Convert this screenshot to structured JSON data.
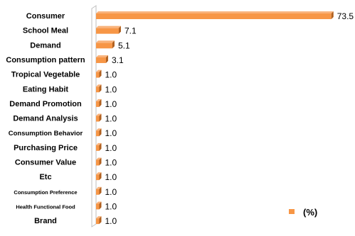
{
  "chart_data": {
    "type": "bar",
    "orientation": "horizontal",
    "categories": [
      "Consumer",
      "School Meal",
      "Demand",
      "Consumption pattern",
      "Tropical Vegetable",
      "Eating Habit",
      "Demand Promotion",
      "Demand Analysis",
      "Consumption Behavior",
      "Purchasing Price",
      "Consumer Value",
      "Etc",
      "Consumption Preference",
      "Health Functional Food",
      "Brand"
    ],
    "series": [
      {
        "name": "(%)",
        "values": [
          73.5,
          7.1,
          5.1,
          3.1,
          1.0,
          1.0,
          1.0,
          1.0,
          1.0,
          1.0,
          1.0,
          1.0,
          1.0,
          1.0,
          1.0
        ]
      }
    ],
    "value_labels": [
      "73.5",
      "7.1",
      "5.1",
      "3.1",
      "1.0",
      "1.0",
      "1.0",
      "1.0",
      "1.0",
      "1.0",
      "1.0",
      "1.0",
      "1.0",
      "1.0",
      "1.0"
    ],
    "xlim": [
      0,
      80
    ],
    "grid": false,
    "legend": "bottom-right",
    "colors": {
      "bar": "#F79646",
      "bar_dark": "#B0601F",
      "axis_wall": "#BFBFBF",
      "label": "#000000"
    }
  }
}
